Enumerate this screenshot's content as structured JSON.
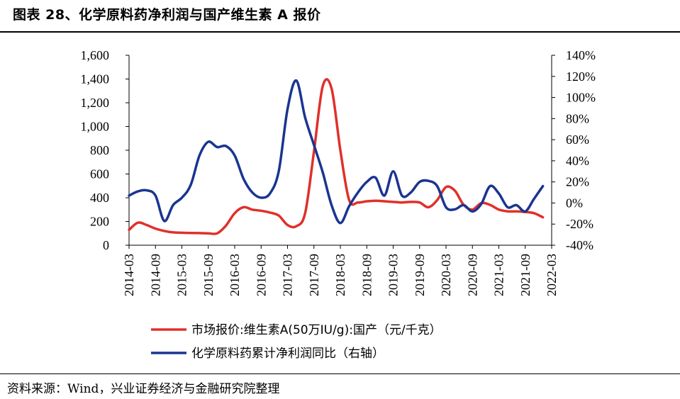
{
  "header": {
    "title": "图表 28、化学原料药净利润与国产维生素 A 报价"
  },
  "footer": {
    "source": "资料来源：Wind，兴业证券经济与金融研究院整理"
  },
  "colors": {
    "price": "#e0302a",
    "profit": "#1a3590"
  },
  "chart_data": {
    "type": "line",
    "x_ticks": [
      "2014-03",
      "2014-09",
      "2015-03",
      "2015-09",
      "2016-03",
      "2016-09",
      "2017-03",
      "2017-09",
      "2018-03",
      "2018-09",
      "2019-03",
      "2019-09",
      "2020-03",
      "2020-09",
      "2021-03",
      "2021-09",
      "2022-03"
    ],
    "y_left": {
      "ticks": [
        "0",
        "200",
        "400",
        "600",
        "800",
        "1,000",
        "1,200",
        "1,400",
        "1,600"
      ],
      "ylim": [
        0,
        1600
      ]
    },
    "y_right": {
      "ticks": [
        "-40%",
        "-20%",
        "0%",
        "20%",
        "40%",
        "60%",
        "80%",
        "100%",
        "120%",
        "140%"
      ],
      "ylim": [
        -40,
        140
      ]
    },
    "series": [
      {
        "name": "市场报价:维生素A(50万IU/g):国产（元/千克）",
        "axis": "left",
        "color": "#e0302a",
        "points": [
          [
            "2014-03",
            130
          ],
          [
            "2014-05",
            190
          ],
          [
            "2014-07",
            170
          ],
          [
            "2014-09",
            140
          ],
          [
            "2014-11",
            120
          ],
          [
            "2015-01",
            108
          ],
          [
            "2015-03",
            105
          ],
          [
            "2015-05",
            103
          ],
          [
            "2015-07",
            102
          ],
          [
            "2015-09",
            100
          ],
          [
            "2015-11",
            100
          ],
          [
            "2016-01",
            165
          ],
          [
            "2016-03",
            270
          ],
          [
            "2016-05",
            320
          ],
          [
            "2016-07",
            300
          ],
          [
            "2016-09",
            290
          ],
          [
            "2016-11",
            275
          ],
          [
            "2017-01",
            250
          ],
          [
            "2017-03",
            170
          ],
          [
            "2017-05",
            160
          ],
          [
            "2017-07",
            270
          ],
          [
            "2017-09",
            790
          ],
          [
            "2017-11",
            1340
          ],
          [
            "2018-01",
            1320
          ],
          [
            "2018-03",
            800
          ],
          [
            "2018-05",
            380
          ],
          [
            "2018-07",
            360
          ],
          [
            "2018-09",
            370
          ],
          [
            "2018-11",
            375
          ],
          [
            "2019-01",
            370
          ],
          [
            "2019-03",
            365
          ],
          [
            "2019-05",
            360
          ],
          [
            "2019-07",
            365
          ],
          [
            "2019-09",
            360
          ],
          [
            "2019-11",
            320
          ],
          [
            "2020-01",
            380
          ],
          [
            "2020-03",
            490
          ],
          [
            "2020-05",
            460
          ],
          [
            "2020-07",
            340
          ],
          [
            "2020-09",
            300
          ],
          [
            "2020-11",
            355
          ],
          [
            "2021-01",
            340
          ],
          [
            "2021-03",
            300
          ],
          [
            "2021-05",
            285
          ],
          [
            "2021-07",
            285
          ],
          [
            "2021-09",
            280
          ],
          [
            "2021-11",
            270
          ],
          [
            "2022-01",
            235
          ]
        ]
      },
      {
        "name": "化学原料药累计净利润同比（右轴）",
        "axis": "right",
        "color": "#1a3590",
        "points": [
          [
            "2014-03",
            7
          ],
          [
            "2014-05",
            11
          ],
          [
            "2014-07",
            12
          ],
          [
            "2014-09",
            7
          ],
          [
            "2014-11",
            -17
          ],
          [
            "2015-01",
            -2
          ],
          [
            "2015-03",
            5
          ],
          [
            "2015-05",
            17
          ],
          [
            "2015-07",
            45
          ],
          [
            "2015-09",
            58
          ],
          [
            "2015-11",
            53
          ],
          [
            "2016-01",
            54
          ],
          [
            "2016-03",
            45
          ],
          [
            "2016-05",
            23
          ],
          [
            "2016-07",
            10
          ],
          [
            "2016-09",
            5
          ],
          [
            "2016-11",
            9
          ],
          [
            "2017-01",
            30
          ],
          [
            "2017-03",
            89
          ],
          [
            "2017-05",
            116
          ],
          [
            "2017-07",
            81
          ],
          [
            "2017-09",
            55
          ],
          [
            "2017-11",
            29
          ],
          [
            "2018-01",
            -2
          ],
          [
            "2018-03",
            -19
          ],
          [
            "2018-05",
            -3
          ],
          [
            "2018-07",
            10
          ],
          [
            "2018-09",
            20
          ],
          [
            "2018-11",
            24
          ],
          [
            "2019-01",
            7
          ],
          [
            "2019-03",
            30
          ],
          [
            "2019-05",
            7
          ],
          [
            "2019-07",
            10
          ],
          [
            "2019-09",
            20
          ],
          [
            "2019-11",
            21
          ],
          [
            "2020-01",
            16
          ],
          [
            "2020-03",
            -4
          ],
          [
            "2020-05",
            -6
          ],
          [
            "2020-07",
            -2
          ],
          [
            "2020-09",
            -8
          ],
          [
            "2020-11",
            -1
          ],
          [
            "2021-01",
            16
          ],
          [
            "2021-03",
            9
          ],
          [
            "2021-05",
            -4
          ],
          [
            "2021-07",
            -2
          ],
          [
            "2021-09",
            -8
          ],
          [
            "2021-11",
            4
          ],
          [
            "2022-01",
            16
          ]
        ]
      }
    ],
    "legend": [
      "市场报价:维生素A(50万IU/g):国产（元/千克）",
      "化学原料药累计净利润同比（右轴）"
    ]
  }
}
